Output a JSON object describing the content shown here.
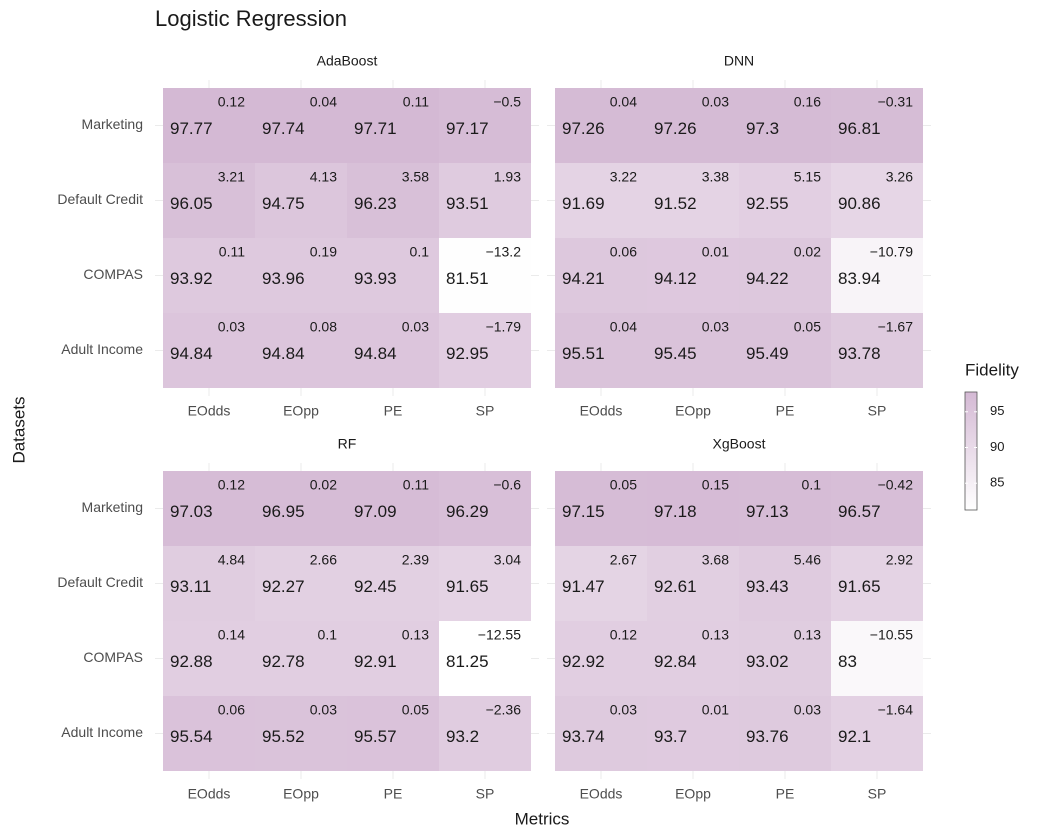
{
  "chart_data": {
    "type": "heatmap",
    "title": "Logistic Regression",
    "xlabel": "Metrics",
    "ylabel": "Datasets",
    "legend_title": "Fidelity",
    "x": [
      "EOdds",
      "EOpp",
      "PE",
      "SP"
    ],
    "y": [
      "Marketing",
      "Default Credit",
      "COMPAS",
      "Adult Income"
    ],
    "clim": [
      81.25,
      97.77
    ],
    "cticks": [
      85,
      90,
      95
    ],
    "low_color": "#ffffff",
    "high_color": "#d4b9d4",
    "facets": [
      {
        "name": "AdaBoost",
        "values": [
          [
            97.77,
            97.74,
            97.71,
            97.17
          ],
          [
            96.05,
            94.75,
            96.23,
            93.51
          ],
          [
            93.92,
            93.96,
            93.93,
            81.51
          ],
          [
            94.84,
            94.84,
            94.84,
            92.95
          ]
        ],
        "deltas": [
          [
            "0.12",
            "0.04",
            "0.11",
            "−0.5"
          ],
          [
            "3.21",
            "4.13",
            "3.58",
            "1.93"
          ],
          [
            "0.11",
            "0.19",
            "0.1",
            "−13.2"
          ],
          [
            "0.03",
            "0.08",
            "0.03",
            "−1.79"
          ]
        ]
      },
      {
        "name": "DNN",
        "values": [
          [
            97.26,
            97.26,
            97.3,
            96.81
          ],
          [
            91.69,
            91.52,
            92.55,
            90.86
          ],
          [
            94.21,
            94.12,
            94.22,
            83.94
          ],
          [
            95.51,
            95.45,
            95.49,
            93.78
          ]
        ],
        "deltas": [
          [
            "0.04",
            "0.03",
            "0.16",
            "−0.31"
          ],
          [
            "3.22",
            "3.38",
            "5.15",
            "3.26"
          ],
          [
            "0.06",
            "0.01",
            "0.02",
            "−10.79"
          ],
          [
            "0.04",
            "0.03",
            "0.05",
            "−1.67"
          ]
        ]
      },
      {
        "name": "RF",
        "values": [
          [
            97.03,
            96.95,
            97.09,
            96.29
          ],
          [
            93.11,
            92.27,
            92.45,
            91.65
          ],
          [
            92.88,
            92.78,
            92.91,
            81.25
          ],
          [
            95.54,
            95.52,
            95.57,
            93.2
          ]
        ],
        "deltas": [
          [
            "0.12",
            "0.02",
            "0.11",
            "−0.6"
          ],
          [
            "4.84",
            "2.66",
            "2.39",
            "3.04"
          ],
          [
            "0.14",
            "0.1",
            "0.13",
            "−12.55"
          ],
          [
            "0.06",
            "0.03",
            "0.05",
            "−2.36"
          ]
        ]
      },
      {
        "name": "XgBoost",
        "values": [
          [
            97.15,
            97.18,
            97.13,
            96.57
          ],
          [
            91.47,
            92.61,
            93.43,
            91.65
          ],
          [
            92.92,
            92.84,
            93.02,
            83
          ],
          [
            93.74,
            93.7,
            93.76,
            92.1
          ]
        ],
        "deltas": [
          [
            "0.05",
            "0.15",
            "0.1",
            "−0.42"
          ],
          [
            "2.67",
            "3.68",
            "5.46",
            "2.92"
          ],
          [
            "0.12",
            "0.13",
            "0.13",
            "−10.55"
          ],
          [
            "0.03",
            "0.01",
            "0.03",
            "−1.64"
          ]
        ]
      }
    ]
  }
}
